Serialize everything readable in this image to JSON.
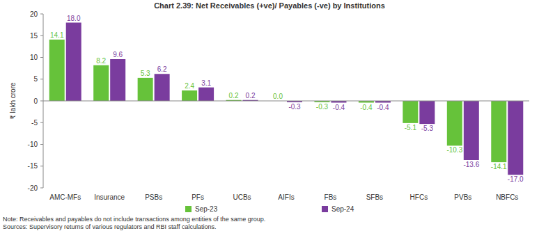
{
  "chart_data": {
    "type": "bar",
    "title": "Chart 2.39: Net Receivables (+ve)/ Payables (-ve) by Institutions",
    "y_label": "₹ lakh crore",
    "categories": [
      "AMC-MFs",
      "Insurance",
      "PSBs",
      "PFs",
      "UCBs",
      "AIFIs",
      "FBs",
      "SFBs",
      "HFCs",
      "PVBs",
      "NBFCs"
    ],
    "series": [
      {
        "name": "Sep-23",
        "color": "#66c23a",
        "values": [
          14.1,
          8.2,
          5.3,
          2.4,
          0.2,
          0.0,
          -0.3,
          -0.4,
          -5.1,
          -10.3,
          -14.1
        ],
        "value_labels": [
          "14.1",
          "8.2",
          "5.3",
          "2.4",
          "0.2",
          "0.0",
          "-0.3",
          "-0.4",
          "-5.1",
          "-10.3",
          "-14.1"
        ]
      },
      {
        "name": "Sep-24",
        "color": "#7a3c9e",
        "values": [
          18.0,
          9.6,
          6.2,
          3.1,
          0.2,
          -0.3,
          -0.4,
          -0.4,
          -5.3,
          -13.6,
          -17.0
        ],
        "value_labels": [
          "18.0",
          "9.6",
          "6.2",
          "3.1",
          "0.2",
          "-0.3",
          "-0.4",
          "-0.4",
          "-5.3",
          "-13.6",
          "-17.0"
        ]
      }
    ],
    "ylim": [
      -20,
      20
    ],
    "yticks": [
      -20,
      -15,
      -10,
      -5,
      0,
      5,
      10,
      15,
      20
    ],
    "grid": false,
    "legend": "bottom",
    "data_labels": true,
    "annotations": [
      "Note: Receivables and payables do not include transactions among entities of the same group.",
      "Sources: Supervisory returns of various regulators and RBI staff calculations."
    ]
  }
}
